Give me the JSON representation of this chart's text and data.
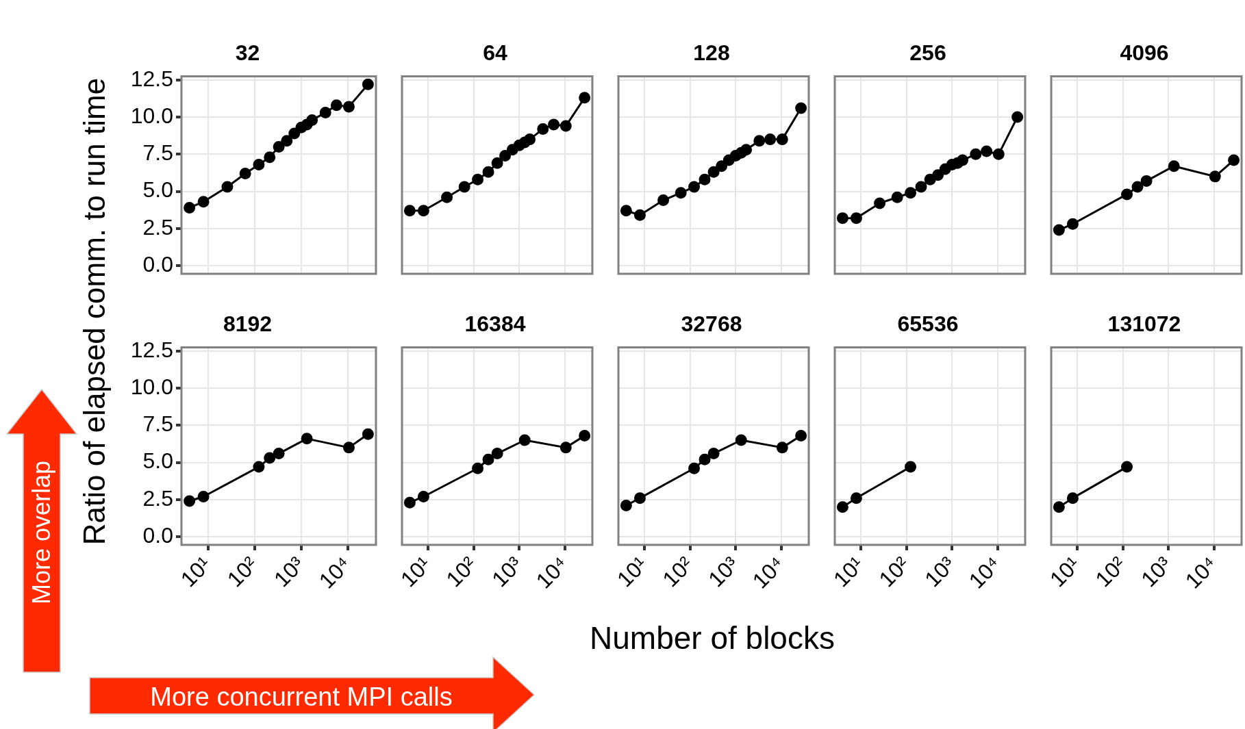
{
  "chart_data": [
    {
      "type": "line",
      "title": "32",
      "ylabel": "Ratio of elapsed comm. to run time",
      "annotations": [
        "More overlap",
        "More concurrent MPI calls"
      ],
      "x": [
        4,
        8,
        26,
        63,
        123,
        210,
        330,
        490,
        710,
        1000,
        1320,
        1700,
        3300,
        5700,
        10500,
        27000
      ],
      "values": [
        3.9,
        4.3,
        5.3,
        6.2,
        6.8,
        7.3,
        8.0,
        8.4,
        8.9,
        9.3,
        9.5,
        9.8,
        10.3,
        10.8,
        10.7,
        12.2
      ],
      "color": "#000000",
      "marker": "circle",
      "log": "x",
      "grid": true,
      "tick_labels": "y",
      "xlim": [
        2.7,
        40000
      ],
      "xticks": [
        10,
        100,
        1000,
        10000
      ],
      "ylim": [
        -0.55,
        12.75
      ],
      "yticks": [
        {
          "value": 0,
          "label": "0.0"
        },
        2.5,
        {
          "value": 5,
          "label": "5.0"
        },
        7.5,
        {
          "value": 10,
          "label": "10.0"
        },
        12.5
      ]
    },
    {
      "type": "line",
      "title": "64",
      "x": [
        4,
        8,
        26,
        63,
        123,
        210,
        330,
        490,
        710,
        1000,
        1320,
        1700,
        3300,
        5700,
        10500,
        27000
      ],
      "values": [
        3.7,
        3.7,
        4.6,
        5.3,
        5.8,
        6.3,
        6.9,
        7.4,
        7.8,
        8.1,
        8.3,
        8.5,
        9.2,
        9.5,
        9.4,
        11.3
      ],
      "color": "#000000",
      "marker": "circle",
      "log": "x",
      "grid": true,
      "tick_labels": false,
      "xlim": [
        2.7,
        40000
      ],
      "xticks": [
        10,
        100,
        1000,
        10000
      ],
      "ylim": [
        -0.55,
        12.75
      ],
      "yticks": [
        0,
        2.5,
        5,
        7.5,
        10,
        12.5
      ]
    },
    {
      "type": "line",
      "title": "128",
      "x": [
        4,
        8,
        26,
        63,
        123,
        210,
        330,
        490,
        710,
        1000,
        1320,
        1700,
        3300,
        5700,
        10500,
        27000
      ],
      "values": [
        3.7,
        3.4,
        4.4,
        4.9,
        5.3,
        5.8,
        6.3,
        6.7,
        7.1,
        7.4,
        7.6,
        7.8,
        8.4,
        8.5,
        8.5,
        10.6
      ],
      "color": "#000000",
      "marker": "circle",
      "log": "x",
      "grid": true,
      "tick_labels": false,
      "xlim": [
        2.7,
        40000
      ],
      "xticks": [
        10,
        100,
        1000,
        10000
      ],
      "ylim": [
        -0.55,
        12.75
      ],
      "yticks": [
        0,
        2.5,
        5,
        7.5,
        10,
        12.5
      ]
    },
    {
      "type": "line",
      "title": "256",
      "x": [
        4,
        8,
        26,
        63,
        123,
        210,
        330,
        490,
        710,
        1000,
        1320,
        1700,
        3300,
        5700,
        10500,
        27000
      ],
      "values": [
        3.2,
        3.2,
        4.2,
        4.6,
        4.9,
        5.3,
        5.8,
        6.1,
        6.5,
        6.8,
        6.9,
        7.1,
        7.5,
        7.7,
        7.5,
        10.0
      ],
      "color": "#000000",
      "marker": "circle",
      "log": "x",
      "grid": true,
      "tick_labels": false,
      "xlim": [
        2.7,
        40000
      ],
      "xticks": [
        10,
        100,
        1000,
        10000
      ],
      "ylim": [
        -0.55,
        12.75
      ],
      "yticks": [
        0,
        2.5,
        5,
        7.5,
        10,
        12.5
      ]
    },
    {
      "type": "line",
      "title": "4096",
      "x": [
        4,
        8,
        123,
        210,
        330,
        1320,
        10500,
        27000
      ],
      "values": [
        2.4,
        2.8,
        4.8,
        5.3,
        5.7,
        6.7,
        6.0,
        7.1
      ],
      "color": "#000000",
      "marker": "circle",
      "log": "x",
      "grid": true,
      "tick_labels": false,
      "xlim": [
        2.7,
        40000
      ],
      "xticks": [
        10,
        100,
        1000,
        10000
      ],
      "ylim": [
        -0.55,
        12.75
      ],
      "yticks": [
        0,
        2.5,
        5,
        7.5,
        10,
        12.5
      ]
    },
    {
      "type": "line",
      "title": "8192",
      "x": [
        4,
        8,
        123,
        210,
        330,
        1320,
        10500,
        27000
      ],
      "values": [
        2.4,
        2.7,
        4.7,
        5.3,
        5.6,
        6.6,
        6.0,
        6.9
      ],
      "color": "#000000",
      "marker": "circle",
      "log": "x",
      "grid": true,
      "xlim": [
        2.7,
        40000
      ],
      "xticks": [
        {
          "value": 10,
          "label": "10¹"
        },
        {
          "value": 100,
          "label": "10²"
        },
        {
          "value": 1000,
          "label": "10³"
        },
        {
          "value": 10000,
          "label": "10⁴"
        }
      ],
      "ylim": [
        -0.55,
        12.75
      ],
      "yticks": [
        {
          "value": 0,
          "label": "0.0"
        },
        2.5,
        {
          "value": 5,
          "label": "5.0"
        },
        7.5,
        {
          "value": 10,
          "label": "10.0"
        },
        12.5
      ]
    },
    {
      "type": "line",
      "title": "16384",
      "x": [
        4,
        8,
        123,
        210,
        330,
        1320,
        10500,
        27000
      ],
      "values": [
        2.3,
        2.7,
        4.6,
        5.2,
        5.6,
        6.5,
        6.0,
        6.8
      ],
      "color": "#000000",
      "marker": "circle",
      "log": "x",
      "grid": true,
      "tick_labels": "x",
      "xlim": [
        2.7,
        40000
      ],
      "xticks": [
        {
          "value": 10,
          "label": "10¹"
        },
        {
          "value": 100,
          "label": "10²"
        },
        {
          "value": 1000,
          "label": "10³"
        },
        {
          "value": 10000,
          "label": "10⁴"
        }
      ],
      "ylim": [
        -0.55,
        12.75
      ],
      "yticks": [
        0,
        2.5,
        5,
        7.5,
        10,
        12.5
      ]
    },
    {
      "type": "line",
      "title": "32768",
      "xlabel": "Number of blocks",
      "x": [
        4,
        8,
        123,
        210,
        330,
        1320,
        10500,
        27000
      ],
      "values": [
        2.1,
        2.6,
        4.6,
        5.2,
        5.6,
        6.5,
        6.0,
        6.8
      ],
      "color": "#000000",
      "marker": "circle",
      "log": "x",
      "grid": true,
      "tick_labels": "x",
      "xlim": [
        2.7,
        40000
      ],
      "xticks": [
        {
          "value": 10,
          "label": "10¹"
        },
        {
          "value": 100,
          "label": "10²"
        },
        {
          "value": 1000,
          "label": "10³"
        },
        {
          "value": 10000,
          "label": "10⁴"
        }
      ],
      "ylim": [
        -0.55,
        12.75
      ],
      "yticks": [
        0,
        2.5,
        5,
        7.5,
        10,
        12.5
      ]
    },
    {
      "type": "line",
      "title": "65536",
      "x": [
        4,
        8,
        123
      ],
      "values": [
        2.0,
        2.6,
        4.7
      ],
      "color": "#000000",
      "marker": "circle",
      "log": "x",
      "grid": true,
      "tick_labels": "x",
      "xlim": [
        2.7,
        40000
      ],
      "xticks": [
        {
          "value": 10,
          "label": "10¹"
        },
        {
          "value": 100,
          "label": "10²"
        },
        {
          "value": 1000,
          "label": "10³"
        },
        {
          "value": 10000,
          "label": "10⁴"
        }
      ],
      "ylim": [
        -0.55,
        12.75
      ],
      "yticks": [
        0,
        2.5,
        5,
        7.5,
        10,
        12.5
      ]
    },
    {
      "type": "line",
      "title": "131072",
      "x": [
        4,
        8,
        123
      ],
      "values": [
        2.0,
        2.6,
        4.7
      ],
      "color": "#000000",
      "marker": "circle",
      "log": "x",
      "grid": true,
      "tick_labels": "x",
      "xlim": [
        2.7,
        40000
      ],
      "xticks": [
        {
          "value": 10,
          "label": "10¹"
        },
        {
          "value": 100,
          "label": "10²"
        },
        {
          "value": 1000,
          "label": "10³"
        },
        {
          "value": 10000,
          "label": "10⁴"
        }
      ],
      "ylim": [
        -0.55,
        12.75
      ],
      "yticks": [
        0,
        2.5,
        5,
        7.5,
        10,
        12.5
      ]
    }
  ]
}
